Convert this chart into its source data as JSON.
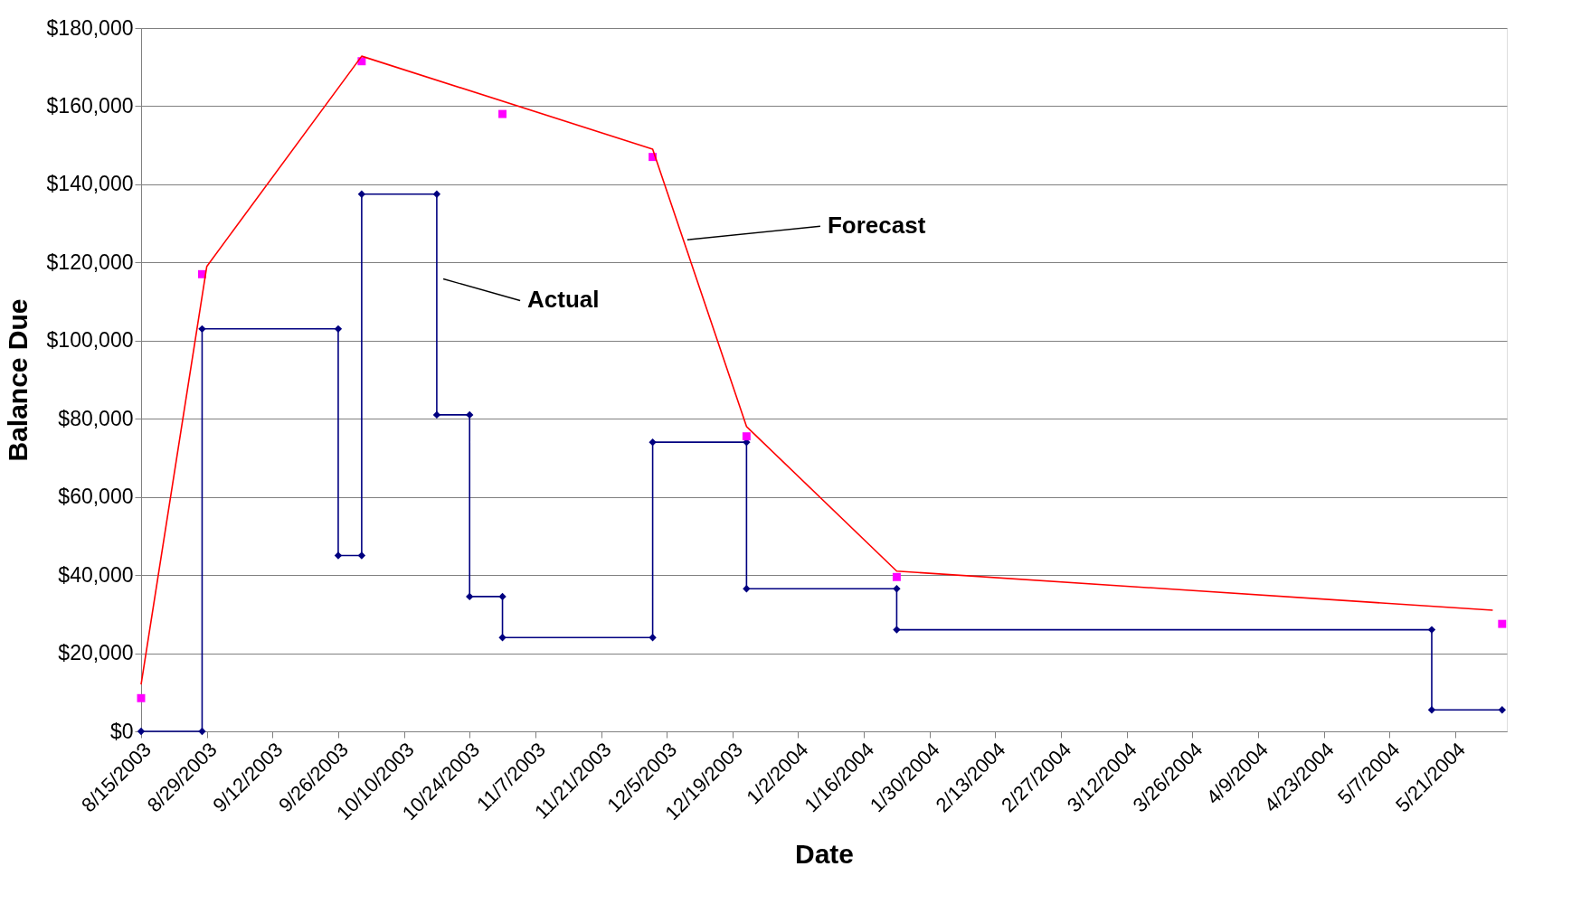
{
  "chart_data": {
    "type": "line",
    "xlabel": "Date",
    "ylabel": "Balance Due",
    "xlim": [
      "2003-08-15",
      "2004-06-01"
    ],
    "ylim": [
      0,
      180000
    ],
    "xticks": [
      {
        "value": "2003-08-15",
        "label": "8/15/2003"
      },
      {
        "value": "2003-08-29",
        "label": "8/29/2003"
      },
      {
        "value": "2003-09-12",
        "label": "9/12/2003"
      },
      {
        "value": "2003-09-26",
        "label": "9/26/2003"
      },
      {
        "value": "2003-10-10",
        "label": "10/10/2003"
      },
      {
        "value": "2003-10-24",
        "label": "10/24/2003"
      },
      {
        "value": "2003-11-07",
        "label": "11/7/2003"
      },
      {
        "value": "2003-11-21",
        "label": "11/21/2003"
      },
      {
        "value": "2003-12-05",
        "label": "12/5/2003"
      },
      {
        "value": "2003-12-19",
        "label": "12/19/2003"
      },
      {
        "value": "2004-01-02",
        "label": "1/2/2004"
      },
      {
        "value": "2004-01-16",
        "label": "1/16/2004"
      },
      {
        "value": "2004-01-30",
        "label": "1/30/2004"
      },
      {
        "value": "2004-02-13",
        "label": "2/13/2004"
      },
      {
        "value": "2004-02-27",
        "label": "2/27/2004"
      },
      {
        "value": "2004-03-12",
        "label": "3/12/2004"
      },
      {
        "value": "2004-03-26",
        "label": "3/26/2004"
      },
      {
        "value": "2004-04-09",
        "label": "4/9/2004"
      },
      {
        "value": "2004-04-23",
        "label": "4/23/2004"
      },
      {
        "value": "2004-05-07",
        "label": "5/7/2004"
      },
      {
        "value": "2004-05-21",
        "label": "5/21/2004"
      }
    ],
    "yticks": [
      {
        "value": 0,
        "label": "$0"
      },
      {
        "value": 20000,
        "label": "$20,000"
      },
      {
        "value": 40000,
        "label": "$40,000"
      },
      {
        "value": 60000,
        "label": "$60,000"
      },
      {
        "value": 80000,
        "label": "$80,000"
      },
      {
        "value": 100000,
        "label": "$100,000"
      },
      {
        "value": 120000,
        "label": "$120,000"
      },
      {
        "value": 140000,
        "label": "$140,000"
      },
      {
        "value": 160000,
        "label": "$160,000"
      },
      {
        "value": 180000,
        "label": "$180,000"
      }
    ],
    "grid": "y",
    "series": [
      {
        "type": "line",
        "marker": "diamond",
        "color": "#000080",
        "x": [
          "2003-08-15",
          "2003-08-28",
          "2003-08-28",
          "2003-09-26",
          "2003-09-26",
          "2003-10-01",
          "2003-10-01",
          "2003-10-17",
          "2003-10-17",
          "2003-10-24",
          "2003-10-24",
          "2003-10-31",
          "2003-10-31",
          "2003-12-02",
          "2003-12-02",
          "2003-12-22",
          "2003-12-22",
          "2004-01-23",
          "2004-01-23",
          "2004-05-16",
          "2004-05-16",
          "2004-05-31"
        ],
        "values": [
          0,
          0,
          103000,
          103000,
          45000,
          45000,
          137500,
          137500,
          81000,
          81000,
          34500,
          34500,
          24000,
          24000,
          74000,
          74000,
          36500,
          36500,
          26000,
          26000,
          5500,
          5500
        ]
      },
      {
        "type": "scatter",
        "marker": "square",
        "color": "#ff00ff",
        "x": [
          "2003-08-15",
          "2003-08-28",
          "2003-10-01",
          "2003-10-31",
          "2003-12-02",
          "2003-12-22",
          "2004-01-23",
          "2004-05-31"
        ],
        "values": [
          8500,
          117000,
          171500,
          158000,
          147000,
          75500,
          39500,
          27500
        ]
      },
      {
        "type": "line",
        "marker": "none",
        "color": "#ff0000",
        "x": [
          "2003-08-15",
          "2003-08-29",
          "2003-10-01",
          "2003-12-02",
          "2003-12-22",
          "2004-01-23",
          "2004-05-29"
        ],
        "values": [
          12000,
          119000,
          172800,
          149000,
          78000,
          41000,
          31000
        ]
      }
    ],
    "annotations": [
      {
        "text": "Actual",
        "x": "2003-10-18",
        "y": 115800
      },
      {
        "text": "Forecast",
        "x": "2003-12-09",
        "y": 125800
      }
    ]
  }
}
